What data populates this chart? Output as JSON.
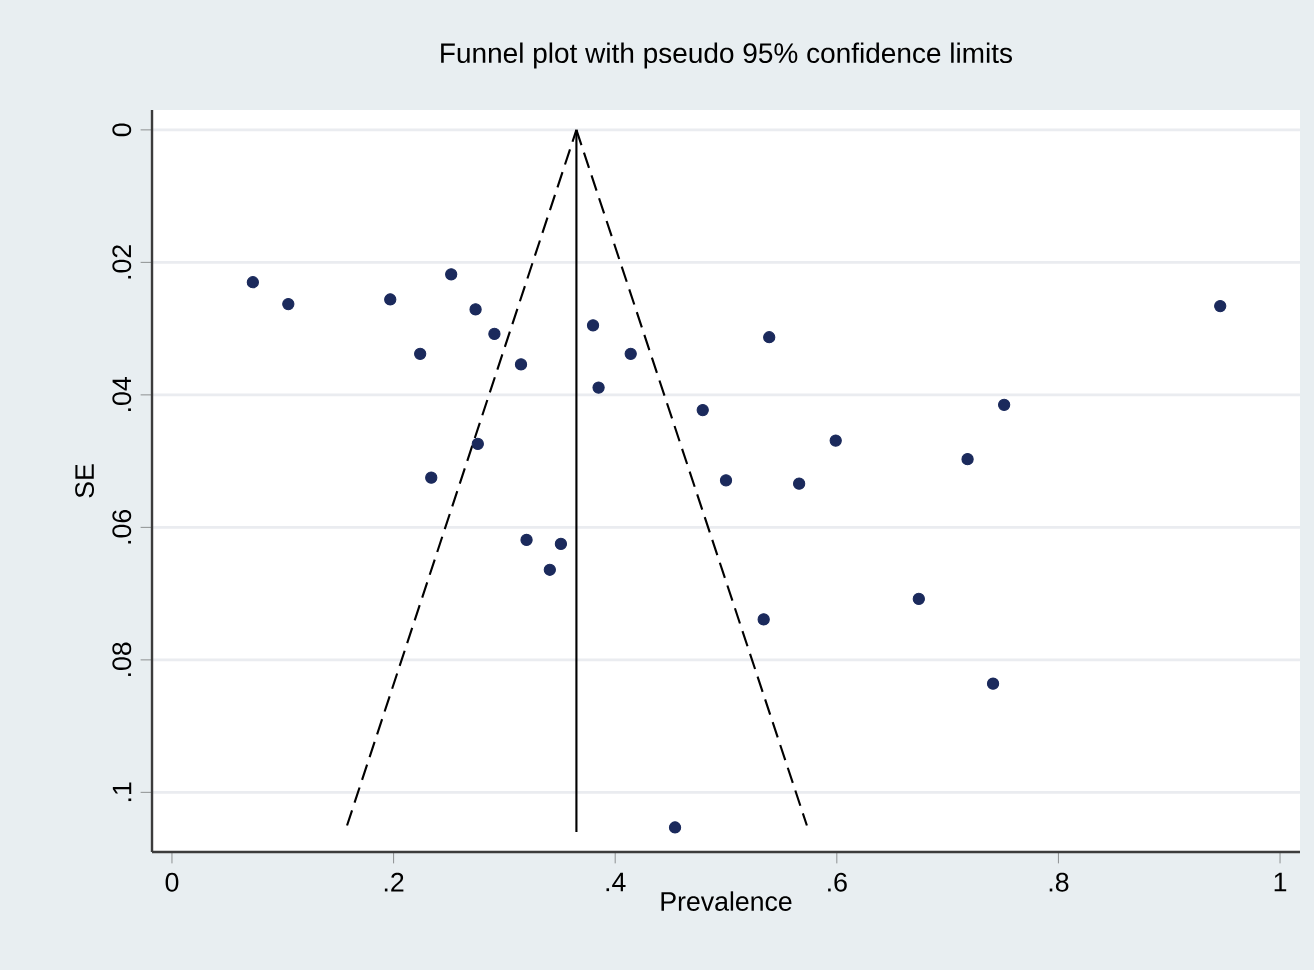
{
  "chart_data": {
    "type": "scatter",
    "title": "Funnel plot with pseudo 95% confidence limits",
    "xlabel": "Prevalence",
    "ylabel": "SE",
    "xlim": [
      -0.018,
      1.018
    ],
    "ylim": [
      0.109,
      -0.003
    ],
    "xticks": [
      0,
      {
        "value": 0.2,
        "label": ".2"
      },
      {
        "value": 0.4,
        "label": ".4"
      },
      {
        "value": 0.6,
        "label": ".6"
      },
      {
        "value": 0.8,
        "label": ".8"
      },
      1
    ],
    "yticks": [
      0,
      {
        "value": 0.02,
        "label": ".02"
      },
      {
        "value": 0.04,
        "label": ".04"
      },
      {
        "value": 0.06,
        "label": ".06"
      },
      {
        "value": 0.08,
        "label": ".08"
      },
      {
        "value": 0.1,
        "label": ".1"
      }
    ],
    "grid": "y",
    "marker": "circle",
    "series": [
      {
        "color": "#1b2a5c",
        "x": [
          0.073,
          0.105,
          0.197,
          0.252,
          0.274,
          0.291,
          0.224,
          0.315,
          0.38,
          0.414,
          0.385,
          0.479,
          0.276,
          0.234,
          0.32,
          0.351,
          0.341,
          0.946,
          0.539,
          0.751,
          0.599,
          0.718,
          0.5,
          0.566,
          0.534,
          0.674,
          0.741,
          0.454
        ],
        "values": [
          0.023,
          0.0263,
          0.0256,
          0.0218,
          0.0271,
          0.0308,
          0.0338,
          0.0354,
          0.0295,
          0.0338,
          0.0389,
          0.0423,
          0.0474,
          0.0525,
          0.0619,
          0.0625,
          0.0664,
          0.0266,
          0.0313,
          0.0415,
          0.0469,
          0.0497,
          0.0529,
          0.0534,
          0.0739,
          0.0708,
          0.0836,
          0.1053
        ]
      },
      {
        "type": "line",
        "marker": "none",
        "line_style": "dashed",
        "color": "#000000",
        "x": [
          0.158,
          0.365
        ],
        "values": [
          0.105,
          0
        ]
      },
      {
        "type": "line",
        "marker": "none",
        "line_style": "dashed",
        "color": "#000000",
        "x": [
          0.365,
          0.573
        ],
        "values": [
          0,
          0.105
        ]
      },
      {
        "type": "line",
        "marker": "none",
        "line_style": "solid",
        "color": "#000000",
        "x": [
          0.365,
          0.365
        ],
        "values": [
          0,
          0.106
        ]
      }
    ]
  }
}
